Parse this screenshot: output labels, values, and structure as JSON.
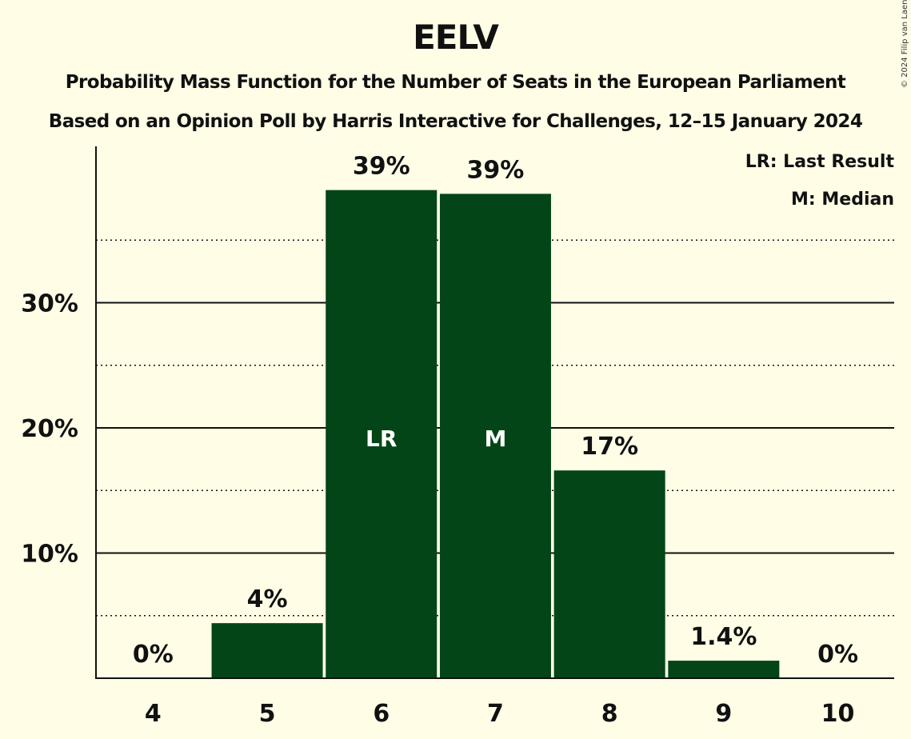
{
  "title": "EELV",
  "subtitle1": "Probability Mass Function for the Number of Seats in the European Parliament",
  "subtitle2": "Based on an Opinion Poll by Harris Interactive for Challenges, 12–15 January 2024",
  "copyright": "© 2024 Filip van Laenen",
  "legend": {
    "lr": "LR: Last Result",
    "m": "M: Median"
  },
  "colors": {
    "background": "#fffde6",
    "bar": "#034516",
    "text": "#111111"
  },
  "chart_data": {
    "type": "bar",
    "categories": [
      "4",
      "5",
      "6",
      "7",
      "8",
      "9",
      "10"
    ],
    "values": [
      0,
      4.4,
      39.0,
      38.7,
      16.6,
      1.4,
      0
    ],
    "value_labels": [
      "0%",
      "4%",
      "39%",
      "39%",
      "17%",
      "1.4%",
      "0%"
    ],
    "bar_markers": [
      "",
      "",
      "LR",
      "M",
      "",
      "",
      ""
    ],
    "yticks": [
      10,
      20,
      30
    ],
    "ytick_labels": [
      "10%",
      "20%",
      "30%"
    ],
    "minor_gridlines": [
      5,
      15,
      25,
      35
    ],
    "ylim": [
      0,
      42.5
    ],
    "grid": true,
    "legend_position": "top-right"
  }
}
